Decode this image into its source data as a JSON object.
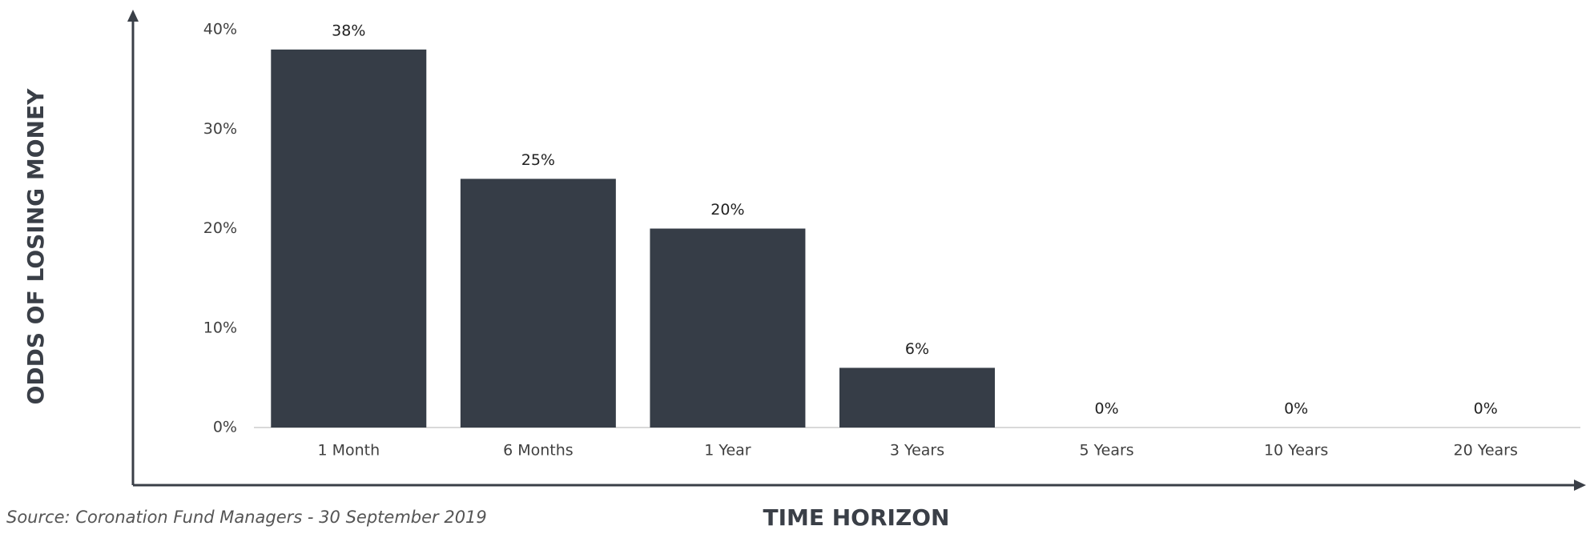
{
  "chart_data": {
    "type": "bar",
    "x_label": "TIME HORIZON",
    "y_label": "ODDS OF LOSING MONEY",
    "source": "Source: Coronation Fund Managers - 30 September 2019",
    "categories": [
      "1 Month",
      "6 Months",
      "1 Year",
      "3 Years",
      "5 Years",
      "10 Years",
      "20 Years"
    ],
    "values": [
      38,
      25,
      20,
      6,
      0,
      0,
      0
    ],
    "value_labels": [
      "38%",
      "25%",
      "20%",
      "6%",
      "0%",
      "0%",
      "0%"
    ],
    "color": "#363d47",
    "ylim": [
      0,
      40
    ],
    "yticks": [
      {
        "value": 0,
        "label": "0%"
      },
      {
        "value": 10,
        "label": "10%"
      },
      {
        "value": 20,
        "label": "20%"
      },
      {
        "value": 30,
        "label": "30%"
      },
      {
        "value": 40,
        "label": "40%"
      }
    ],
    "grid": false
  }
}
